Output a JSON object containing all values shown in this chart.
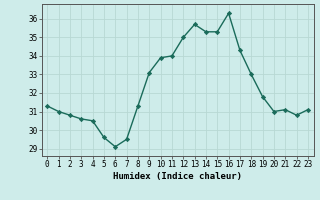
{
  "x": [
    0,
    1,
    2,
    3,
    4,
    5,
    6,
    7,
    8,
    9,
    10,
    11,
    12,
    13,
    14,
    15,
    16,
    17,
    18,
    19,
    20,
    21,
    22,
    23
  ],
  "y": [
    31.3,
    31.0,
    30.8,
    30.6,
    30.5,
    29.6,
    29.1,
    29.5,
    31.3,
    33.1,
    33.9,
    34.0,
    35.0,
    35.7,
    35.3,
    35.3,
    36.3,
    34.3,
    33.0,
    31.8,
    31.0,
    31.1,
    30.8,
    31.1
  ],
  "line_color": "#1a6b5a",
  "marker": "D",
  "markersize": 2.2,
  "linewidth": 1.0,
  "bg_color": "#ceecea",
  "grid_color": "#b8d8d4",
  "xlabel": "Humidex (Indice chaleur)",
  "xlabel_fontsize": 6.5,
  "ytick_labels": [
    "29",
    "30",
    "31",
    "32",
    "33",
    "34",
    "35",
    "36"
  ],
  "ytick_values": [
    29,
    30,
    31,
    32,
    33,
    34,
    35,
    36
  ],
  "ylim": [
    28.6,
    36.8
  ],
  "xlim": [
    -0.5,
    23.5
  ],
  "xtick_values": [
    0,
    1,
    2,
    3,
    4,
    5,
    6,
    7,
    8,
    9,
    10,
    11,
    12,
    13,
    14,
    15,
    16,
    17,
    18,
    19,
    20,
    21,
    22,
    23
  ],
  "tick_fontsize": 5.5
}
